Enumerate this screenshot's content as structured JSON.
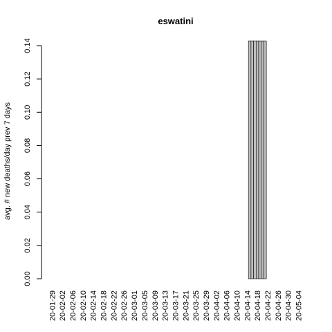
{
  "chart_data": {
    "type": "bar",
    "title": "eswatini",
    "xlabel": "",
    "ylabel": "avg. # new deaths/day prev  7  days",
    "ylim": [
      0,
      0.14
    ],
    "yticks": [
      "0.00",
      "0.02",
      "0.04",
      "0.06",
      "0.08",
      "0.10",
      "0.12",
      "0.14"
    ],
    "start_date": "2020-01-29",
    "end_date": "2020-05-05",
    "tick_labels": [
      "20-01-29",
      "20-02-02",
      "20-02-06",
      "20-02-10",
      "20-02-14",
      "20-02-18",
      "20-02-22",
      "20-02-26",
      "20-03-01",
      "20-03-05",
      "20-03-09",
      "20-03-13",
      "20-03-17",
      "20-03-21",
      "20-03-25",
      "20-03-29",
      "20-04-02",
      "20-04-06",
      "20-04-10",
      "20-04-14",
      "20-04-18",
      "20-04-22",
      "20-04-26",
      "20-04-30",
      "20-05-04"
    ],
    "nonzero": [
      {
        "date": "2020-04-15",
        "value": 0.142857
      },
      {
        "date": "2020-04-16",
        "value": 0.142857
      },
      {
        "date": "2020-04-17",
        "value": 0.142857
      },
      {
        "date": "2020-04-18",
        "value": 0.142857
      },
      {
        "date": "2020-04-19",
        "value": 0.142857
      },
      {
        "date": "2020-04-20",
        "value": 0.142857
      },
      {
        "date": "2020-04-21",
        "value": 0.142857
      }
    ],
    "grid": false,
    "legend": "none"
  }
}
